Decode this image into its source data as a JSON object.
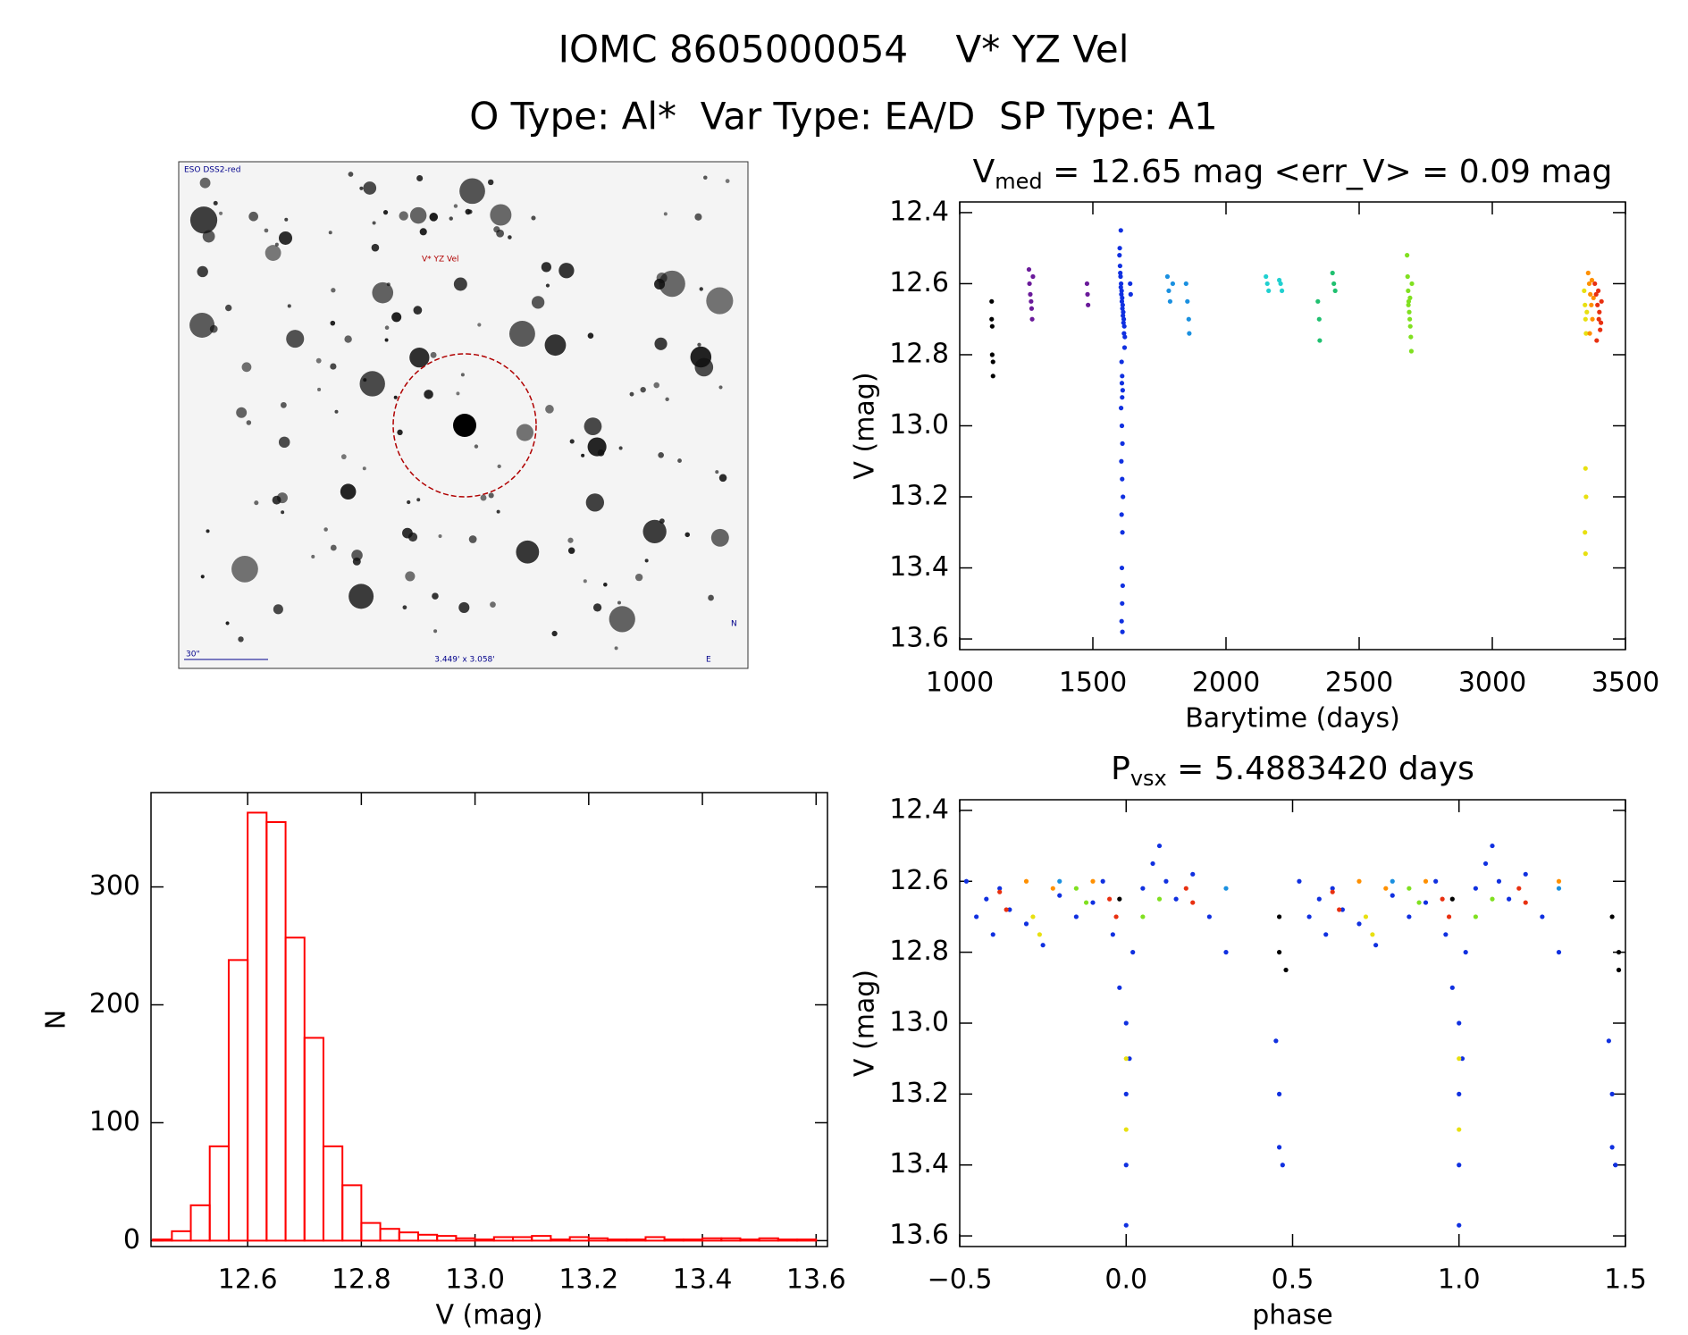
{
  "header": {
    "title": "IOMC 8605000054    V* YZ Vel",
    "subtitle": "O Type: Al*  Var Type: EA/D  SP Type: A1"
  },
  "image": {
    "survey": "ESO DSS2-red",
    "target": "V* YZ Vel",
    "scale": "30\"",
    "field": "3.449' x 3.058'",
    "north": "N",
    "east": "E"
  },
  "chart_data": [
    {
      "type": "scatter",
      "title": "V",
      "title_sub": "med",
      "title_tail": " = 12.65 mag <err_V> = 0.09 mag",
      "x_label": "Barytime (days)",
      "y_label": "V (mag)",
      "xlim": [
        1000,
        3500
      ],
      "xticks": [
        1000,
        1500,
        2000,
        2500,
        3000,
        3500
      ],
      "ylim": [
        12.37,
        13.63
      ],
      "y_inverted": true,
      "yticks": [
        12.4,
        12.6,
        12.8,
        {
          "value": 13,
          "label": "13.0"
        },
        13.2,
        13.4,
        13.6
      ],
      "series": [
        {
          "color": "#000000",
          "x": [
            1120,
            1120,
            1122,
            1122,
            1125,
            1125
          ],
          "values": [
            12.65,
            12.7,
            12.72,
            12.8,
            12.82,
            12.86
          ]
        },
        {
          "color": "#6a1a9a",
          "x": [
            1260,
            1262,
            1265,
            1268,
            1270,
            1272,
            1275,
            1478,
            1480,
            1482
          ],
          "values": [
            12.56,
            12.6,
            12.63,
            12.65,
            12.67,
            12.7,
            12.58,
            12.6,
            12.63,
            12.66
          ]
        },
        {
          "color": "#1030e0",
          "x": [
            1600,
            1602,
            1604,
            1606,
            1608,
            1610,
            1612,
            1614,
            1616,
            1618,
            1620,
            1601,
            1603,
            1605,
            1607,
            1609,
            1611,
            1613,
            1615,
            1617,
            1619,
            1605,
            1608,
            1610,
            1612,
            1606,
            1609,
            1611,
            1607,
            1610,
            1613,
            1608,
            1611,
            1609,
            1612,
            1610,
            1608,
            1611,
            1609,
            1610,
            1640,
            1642
          ],
          "values": [
            12.52,
            12.55,
            12.58,
            12.6,
            12.62,
            12.64,
            12.66,
            12.68,
            12.7,
            12.72,
            12.75,
            12.5,
            12.57,
            12.61,
            12.63,
            12.65,
            12.67,
            12.69,
            12.71,
            12.74,
            12.78,
            12.45,
            12.82,
            12.86,
            12.9,
            12.95,
            13.0,
            13.05,
            13.1,
            13.15,
            13.2,
            13.25,
            13.3,
            13.4,
            13.45,
            13.5,
            13.55,
            13.58,
            12.88,
            12.92,
            12.6,
            12.63
          ]
        },
        {
          "color": "#1a90e0",
          "x": [
            1780,
            1785,
            1790,
            1800,
            1850,
            1855,
            1860,
            1862
          ],
          "values": [
            12.58,
            12.62,
            12.65,
            12.6,
            12.6,
            12.65,
            12.7,
            12.74
          ]
        },
        {
          "color": "#20d0d0",
          "x": [
            2150,
            2155,
            2160,
            2200,
            2205,
            2210
          ],
          "values": [
            12.58,
            12.6,
            12.62,
            12.59,
            12.6,
            12.62
          ]
        },
        {
          "color": "#20c070",
          "x": [
            2345,
            2350,
            2352,
            2400,
            2405,
            2410
          ],
          "values": [
            12.65,
            12.7,
            12.76,
            12.57,
            12.6,
            12.62
          ]
        },
        {
          "color": "#80e020",
          "x": [
            2680,
            2682,
            2684,
            2686,
            2688,
            2690,
            2692,
            2694,
            2696,
            2698,
            2685,
            2691
          ],
          "values": [
            12.52,
            12.58,
            12.62,
            12.65,
            12.68,
            12.7,
            12.72,
            12.75,
            12.79,
            12.6,
            12.66,
            12.64
          ]
        },
        {
          "color": "#e8e010",
          "x": [
            3345,
            3348,
            3350,
            3352,
            3355,
            3350,
            3352,
            3348,
            3350
          ],
          "values": [
            12.62,
            12.66,
            12.7,
            12.74,
            12.68,
            13.12,
            13.2,
            13.3,
            13.36
          ]
        },
        {
          "color": "#ff9000",
          "x": [
            3360,
            3364,
            3368,
            3372,
            3376,
            3380,
            3366,
            3374
          ],
          "values": [
            12.57,
            12.6,
            12.63,
            12.66,
            12.7,
            12.64,
            12.74,
            12.59
          ]
        },
        {
          "color": "#e83010",
          "x": [
            3385,
            3390,
            3395,
            3400,
            3405,
            3410,
            3392,
            3398,
            3402,
            3408
          ],
          "values": [
            12.6,
            12.63,
            12.66,
            12.7,
            12.73,
            12.65,
            12.76,
            12.62,
            12.68,
            12.71
          ]
        }
      ]
    },
    {
      "type": "histogram",
      "x_label": "V (mag)",
      "y_label": "N",
      "color": "#ff0000",
      "xlim": [
        12.43,
        13.62
      ],
      "xticks": [
        12.6,
        12.8,
        {
          "value": 13,
          "label": "13.0"
        },
        13.2,
        13.4,
        13.6
      ],
      "ylim": [
        -5,
        380
      ],
      "yticks": [
        0,
        100,
        200,
        300
      ],
      "bins": [
        12.4333,
        12.4667,
        12.5,
        12.5333,
        12.5667,
        12.6,
        12.6333,
        12.6667,
        12.7,
        12.7333,
        12.7667,
        12.8,
        12.8333,
        12.8667,
        12.9,
        12.9333,
        12.9667,
        13.0,
        13.0333,
        13.0667,
        13.1,
        13.1333,
        13.1667,
        13.2,
        13.2333,
        13.2667,
        13.3,
        13.3333,
        13.3667,
        13.4,
        13.4333,
        13.4667,
        13.5,
        13.5333,
        13.5667,
        13.6
      ],
      "values": [
        1,
        8,
        30,
        80,
        238,
        363,
        355,
        257,
        172,
        80,
        47,
        15,
        10,
        7,
        5,
        4,
        2,
        1,
        3,
        3,
        4,
        1,
        3,
        2,
        1,
        1,
        3,
        1,
        1,
        2,
        2,
        1,
        2,
        1,
        1
      ]
    },
    {
      "type": "scatter",
      "title": "P",
      "title_sub": "vsx",
      "title_tail": " = 5.4883420 days",
      "x_label": "phase",
      "y_label": "V (mag)",
      "xlim": [
        -0.5,
        1.5
      ],
      "xticks": [
        {
          "value": -0.5,
          "label": "−0.5"
        },
        {
          "value": 0,
          "label": "0.0"
        },
        0.5,
        {
          "value": 1,
          "label": "1.0"
        },
        1.5
      ],
      "ylim": [
        12.37,
        13.63
      ],
      "y_inverted": true,
      "yticks": [
        12.4,
        12.6,
        12.8,
        {
          "value": 13,
          "label": "13.0"
        },
        13.2,
        13.4,
        13.6
      ],
      "series": [
        {
          "color": "#1030e0",
          "x": [
            -0.48,
            -0.45,
            -0.42,
            -0.4,
            -0.38,
            -0.35,
            -0.3,
            -0.25,
            -0.2,
            -0.15,
            -0.1,
            -0.07,
            -0.04,
            -0.02,
            0.0,
            0.0,
            0.0,
            0.0,
            0.01,
            0.02,
            0.05,
            0.08,
            0.1,
            0.12,
            0.15,
            0.2,
            0.25,
            0.3,
            0.45,
            0.46,
            0.46,
            0.47,
            0.52,
            0.55,
            0.58,
            0.6,
            0.62,
            0.65,
            0.7,
            0.75,
            0.8,
            0.85,
            0.9,
            0.93,
            0.96,
            0.98,
            1.0,
            1.0,
            1.0,
            1.0,
            1.01,
            1.02,
            1.05,
            1.08,
            1.1,
            1.12,
            1.15,
            1.2,
            1.25,
            1.3,
            1.45,
            1.46,
            1.46,
            1.47
          ],
          "values": [
            12.6,
            12.7,
            12.65,
            12.75,
            12.62,
            12.68,
            12.72,
            12.78,
            12.64,
            12.7,
            12.66,
            12.6,
            12.75,
            12.9,
            13.0,
            13.2,
            13.4,
            13.57,
            13.1,
            12.8,
            12.62,
            12.55,
            12.5,
            12.6,
            12.65,
            12.58,
            12.7,
            12.8,
            13.05,
            13.2,
            13.35,
            13.4,
            12.6,
            12.7,
            12.65,
            12.75,
            12.62,
            12.68,
            12.72,
            12.78,
            12.64,
            12.7,
            12.66,
            12.6,
            12.75,
            12.9,
            13.0,
            13.2,
            13.4,
            13.57,
            13.1,
            12.8,
            12.62,
            12.55,
            12.5,
            12.6,
            12.65,
            12.58,
            12.7,
            12.8,
            13.05,
            13.2,
            13.35,
            13.4
          ]
        },
        {
          "color": "#000000",
          "x": [
            -0.02,
            0.46,
            0.46,
            0.48,
            0.98,
            1.46,
            1.48,
            1.48
          ],
          "values": [
            12.65,
            12.7,
            12.8,
            12.85,
            12.65,
            12.7,
            12.8,
            12.85
          ]
        },
        {
          "color": "#e83010",
          "x": [
            -0.38,
            -0.36,
            -0.05,
            -0.03,
            0.18,
            0.2,
            0.62,
            0.64,
            0.95,
            0.97,
            1.18,
            1.2
          ],
          "values": [
            12.63,
            12.68,
            12.65,
            12.7,
            12.62,
            12.66,
            12.63,
            12.68,
            12.65,
            12.7,
            12.62,
            12.66
          ]
        },
        {
          "color": "#ff9000",
          "x": [
            -0.3,
            -0.22,
            -0.1,
            0.7,
            0.78,
            0.9,
            1.3
          ],
          "values": [
            12.6,
            12.62,
            12.6,
            12.6,
            12.62,
            12.6,
            12.6
          ]
        },
        {
          "color": "#e8e010",
          "x": [
            -0.28,
            -0.26,
            0.0,
            0.0,
            0.72,
            0.74,
            1.0,
            1.0
          ],
          "values": [
            12.7,
            12.75,
            13.1,
            13.3,
            12.7,
            12.75,
            13.1,
            13.3
          ]
        },
        {
          "color": "#80e020",
          "x": [
            -0.15,
            -0.12,
            0.05,
            0.1,
            0.85,
            0.88,
            1.05,
            1.1
          ],
          "values": [
            12.62,
            12.66,
            12.7,
            12.65,
            12.62,
            12.66,
            12.7,
            12.65
          ]
        },
        {
          "color": "#1a90e0",
          "x": [
            -0.2,
            0.3,
            0.8,
            1.3
          ],
          "values": [
            12.6,
            12.62,
            12.6,
            12.62
          ]
        }
      ]
    }
  ]
}
